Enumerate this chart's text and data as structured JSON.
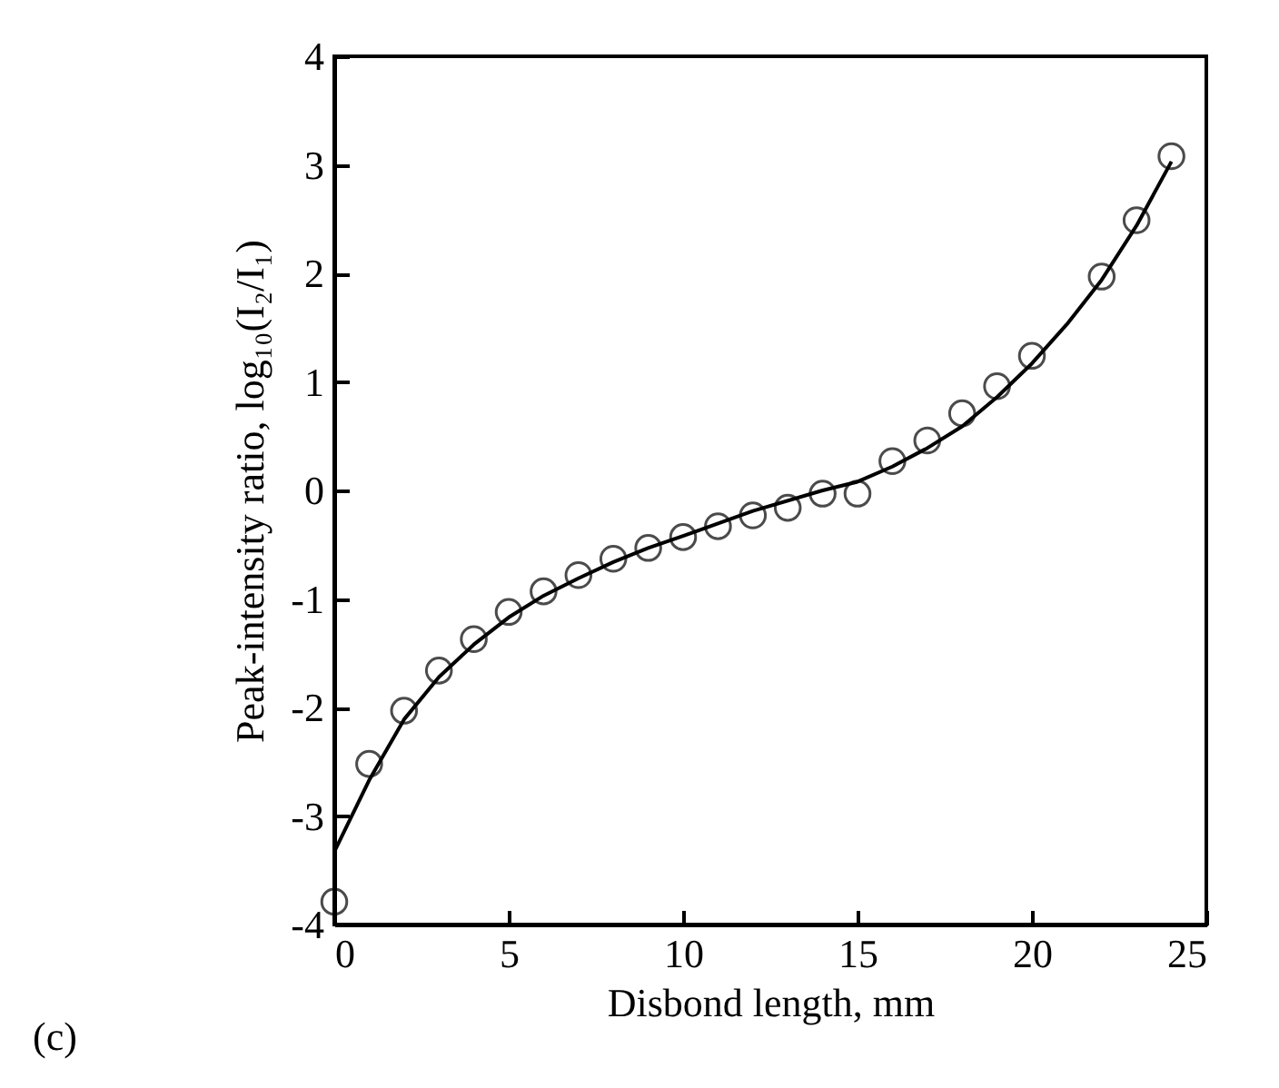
{
  "chart_data": {
    "type": "scatter",
    "xlabel": "Disbond length, mm",
    "ylabel": "Peak-intensity ratio, log₁₀(I₂/I₁)",
    "annotations": [
      "(c)"
    ],
    "xlim": [
      0,
      25
    ],
    "ylim": [
      -4,
      4
    ],
    "xticks": [
      0,
      5,
      10,
      15,
      20,
      25
    ],
    "yticks": [
      -4,
      -3,
      -2,
      -1,
      0,
      1,
      2,
      3,
      4
    ],
    "grid": false,
    "series": [
      {
        "marker": "circle",
        "color": "#000000",
        "x": [
          0,
          1,
          2,
          3,
          4,
          5,
          6,
          7,
          8,
          9,
          10,
          11,
          12,
          13,
          14,
          15,
          16,
          17,
          18,
          19,
          20,
          22,
          23,
          24
        ],
        "values": [
          -3.79,
          -2.52,
          -2.03,
          -1.66,
          -1.37,
          -1.12,
          -0.93,
          -0.78,
          -0.63,
          -0.53,
          -0.43,
          -0.33,
          -0.23,
          -0.16,
          -0.03,
          -0.03,
          0.27,
          0.46,
          0.71,
          0.96,
          1.24,
          1.97,
          2.49,
          3.08
        ]
      },
      {
        "type": "line",
        "color": "#000000",
        "line_style": "solid",
        "x": [
          0,
          1,
          2,
          3,
          4,
          5,
          6,
          7,
          8,
          9,
          10,
          12,
          14,
          15,
          16,
          17,
          18,
          19,
          20,
          21,
          22,
          23,
          24
        ],
        "values": [
          -3.33,
          -2.67,
          -2.11,
          -1.72,
          -1.42,
          -1.17,
          -0.97,
          -0.81,
          -0.66,
          -0.53,
          -0.42,
          -0.19,
          0.0,
          0.08,
          0.22,
          0.39,
          0.59,
          0.86,
          1.17,
          1.53,
          1.94,
          2.44,
          3.03
        ]
      }
    ]
  }
}
